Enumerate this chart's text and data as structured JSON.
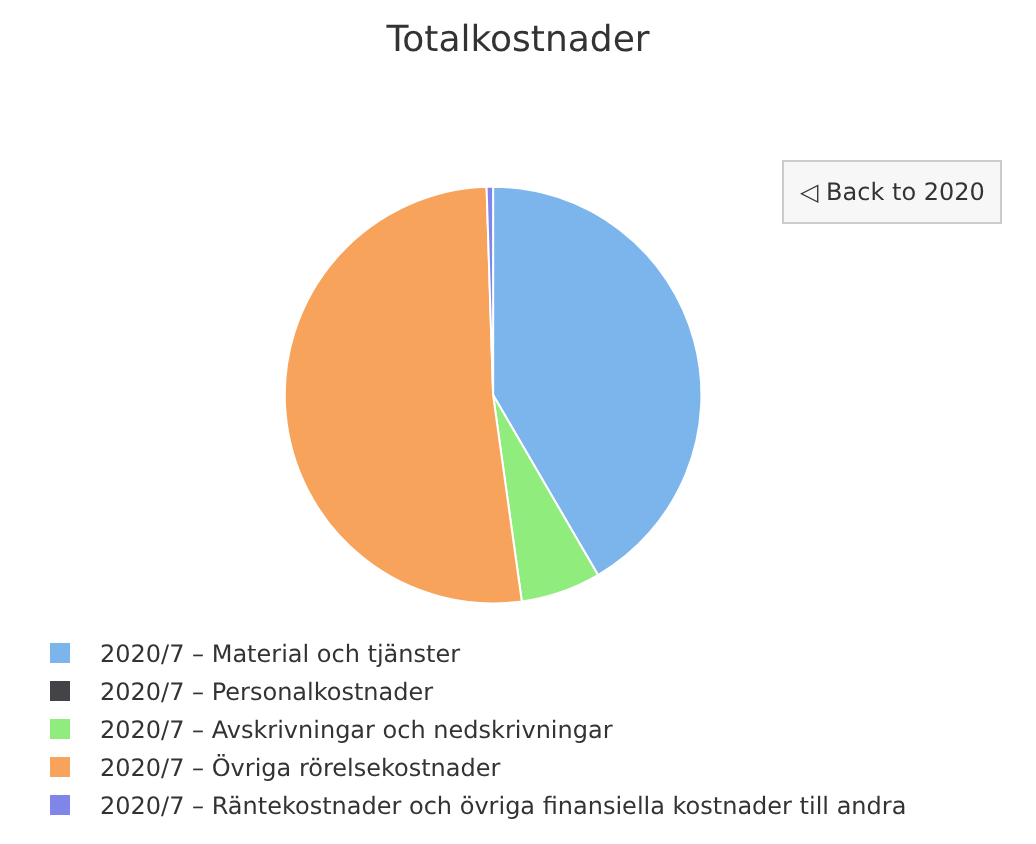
{
  "chart_data": {
    "type": "pie",
    "title": "Totalkostnader",
    "categories": [
      "2020/7 – Material och tjänster",
      "2020/7 – Personalkostnader",
      "2020/7 – Avskrivningar och nedskrivningar",
      "2020/7 – Övriga rörelsekostnader",
      "2020/7 – Räntekostnader och övriga finansiella kostnader till andra"
    ],
    "values": [
      41.6,
      0,
      6.2,
      51.7,
      0.5
    ],
    "colors": [
      "#7cb5ec",
      "#434348",
      "#90ed7d",
      "#f7a35c",
      "#8085e9"
    ],
    "annotations": [
      "◁ Back to 2020"
    ],
    "legend": "bottom left"
  }
}
